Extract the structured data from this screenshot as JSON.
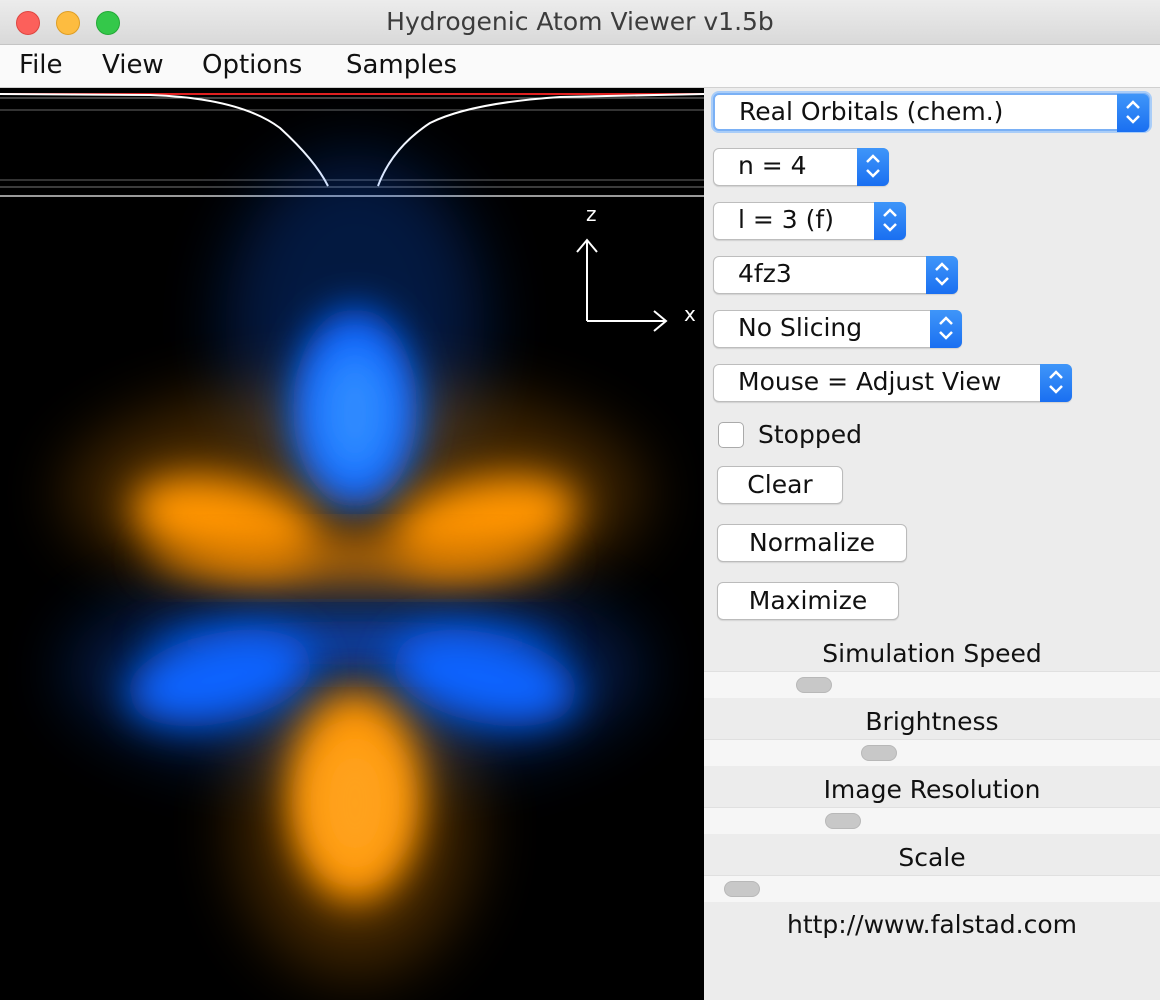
{
  "window": {
    "title": "Hydrogenic Atom Viewer v1.5b"
  },
  "menu": {
    "file": "File",
    "view": "View",
    "options": "Options",
    "samples": "Samples"
  },
  "canvas": {
    "axis_z": "z",
    "axis_x": "x"
  },
  "controls": {
    "orbital_type": "Real Orbitals (chem.)",
    "n": "n = 4",
    "l": "l = 3 (f)",
    "m": "4fz3",
    "slicing": "No Slicing",
    "mouse_mode": "Mouse = Adjust View",
    "stopped_label": "Stopped",
    "stopped_checked": false,
    "clear_label": "Clear",
    "normalize_label": "Normalize",
    "maximize_label": "Maximize"
  },
  "sliders": {
    "speed_label": "Simulation Speed",
    "brightness_label": "Brightness",
    "resolution_label": "Image Resolution",
    "scale_label": "Scale"
  },
  "footer": {
    "url": "http://www.falstad.com"
  },
  "colors": {
    "positive_lobe": "#0a64ff",
    "negative_lobe": "#ff9a00",
    "accent": "#1a6ff1"
  }
}
